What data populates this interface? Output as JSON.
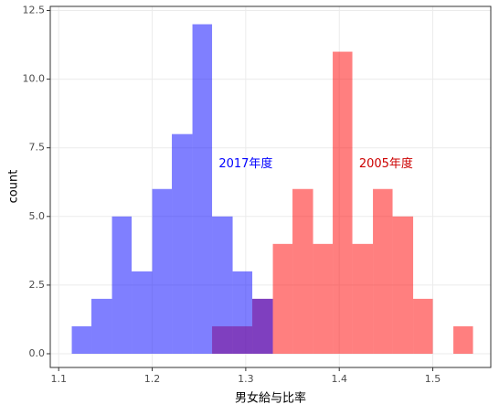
{
  "chart_data": {
    "type": "histogram",
    "xlabel": "男女給与比率",
    "ylabel": "count",
    "bins": [
      1.114,
      1.135,
      1.157,
      1.178,
      1.2,
      1.221,
      1.243,
      1.264,
      1.286,
      1.307,
      1.329,
      1.35,
      1.372,
      1.393,
      1.414,
      1.436,
      1.457,
      1.479,
      1.5,
      1.522,
      1.543
    ],
    "series": [
      {
        "name": "2005年度",
        "color": "#ff0000",
        "values": [
          0,
          0,
          0,
          0,
          0,
          0,
          0,
          1,
          1,
          2,
          4,
          6,
          4,
          11,
          4,
          6,
          5,
          2,
          0,
          1
        ]
      },
      {
        "name": "2017年度",
        "color": "#0000ff",
        "values": [
          1,
          2,
          5,
          3,
          6,
          8,
          12,
          5,
          3,
          2,
          0,
          0,
          0,
          0,
          0,
          0,
          0,
          0,
          0,
          0
        ]
      }
    ],
    "annotations": [
      {
        "text": "2017年度",
        "x": 1.3,
        "y": 6.9,
        "color": "#0000ff"
      },
      {
        "text": "2005年度",
        "x": 1.45,
        "y": 6.9,
        "color": "#cc0000"
      }
    ],
    "xlim": [
      1.091,
      1.562
    ],
    "xticks": [
      1.1,
      1.2,
      1.3,
      1.4,
      1.5
    ],
    "ylim": [
      -0.5,
      12.65
    ],
    "yticks": [
      {
        "value": 0,
        "label": "0.0"
      },
      {
        "value": 2.5,
        "label": "2.5"
      },
      {
        "value": 5,
        "label": "5.0"
      },
      {
        "value": 7.5,
        "label": "7.5"
      },
      {
        "value": 10,
        "label": "10.0"
      },
      {
        "value": 12.5,
        "label": "12.5"
      }
    ],
    "grid": true,
    "opacity": 0.5
  }
}
